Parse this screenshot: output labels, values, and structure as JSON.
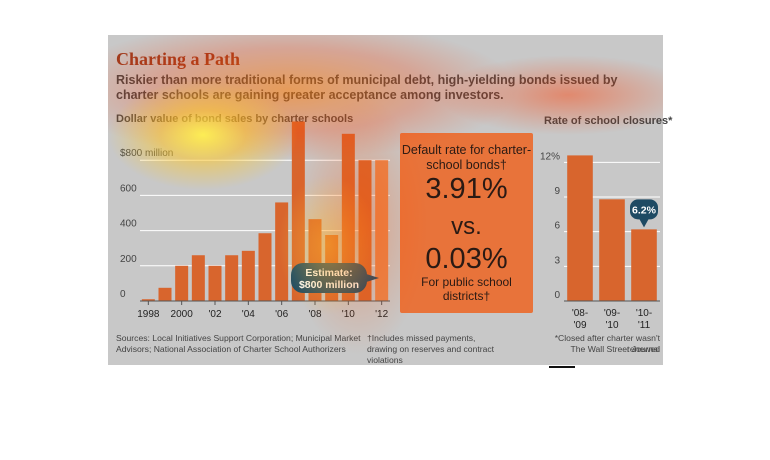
{
  "header": {
    "title": "Charting a Path",
    "subtitle": "Riskier than more traditional forms of municipal debt, high-yielding bonds issued by charter schools are gaining greater acceptance among investors."
  },
  "default_box": {
    "heading": "Default rate for charter-school bonds†",
    "rate_charter": "3.91%",
    "vs": "vs.",
    "rate_public": "0.03%",
    "footer": "For public school districts†"
  },
  "footnotes": {
    "sources": "Sources: Local Initiatives Support Corporation; Municipal Market Advisors; National Association of Charter School Authorizers",
    "dagger": "†Includes missed payments, drawing on reserves and contract violations",
    "closures": "*Closed after charter wasn't renewed",
    "credit": "The Wall Street Journal"
  },
  "colors": {
    "panel": "#c8c8c8",
    "bar": "#d8652d",
    "bar_light": "#e8844a",
    "callout": "#1e4a63",
    "text": "#444444",
    "title": "#9a3a1e"
  },
  "chart_data": [
    {
      "type": "bar",
      "title": "Dollar value of bond sales by charter schools",
      "x": [
        "1998",
        "1999",
        "2000",
        "2001",
        "2002",
        "2003",
        "2004",
        "2005",
        "2006",
        "2007",
        "2008",
        "2009",
        "2010",
        "2011",
        "2012"
      ],
      "x_tick_labels": [
        "1998",
        "2000",
        "'02",
        "'04",
        "'06",
        "'08",
        "'10",
        "'12"
      ],
      "y_tick_labels": [
        "$800 million",
        "600",
        "400",
        "200",
        "0"
      ],
      "values": [
        10,
        75,
        200,
        260,
        200,
        260,
        285,
        385,
        560,
        1020,
        465,
        375,
        950,
        800,
        800
      ],
      "estimate_years": [
        "2012"
      ],
      "annotation": "Estimate: $800 million",
      "ylim": [
        0,
        1000
      ],
      "grid": true
    },
    {
      "type": "bar",
      "title": "Rate of school closures*",
      "categories": [
        "'08-'09",
        "'09-'10",
        "'10-'11"
      ],
      "values": [
        12.6,
        8.8,
        6.2
      ],
      "y_tick_labels": [
        "12%",
        "9",
        "6",
        "3",
        "0"
      ],
      "annotation": "6.2%",
      "ylim": [
        0,
        13.5
      ],
      "grid": true
    }
  ]
}
